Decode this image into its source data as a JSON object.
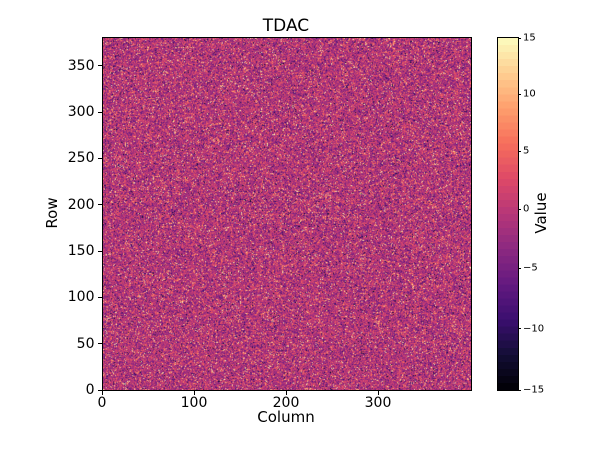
{
  "chart_data": {
    "type": "heatmap",
    "title": "TDAC",
    "xlabel": "Column",
    "ylabel": "Row",
    "x_range": [
      0,
      400
    ],
    "y_range": [
      0,
      380
    ],
    "x_ticks": [
      0,
      100,
      200,
      300
    ],
    "y_ticks": [
      0,
      50,
      100,
      150,
      200,
      250,
      300,
      350
    ],
    "colormap": "magma",
    "colorbar": {
      "label": "Value",
      "vmin": -15,
      "vmax": 15,
      "ticks": [
        15,
        10,
        5,
        0,
        -5,
        -10,
        -15
      ]
    },
    "data_description": "400x380 random noise image, values centered near 0 (approx. normal, sigma ~3) with ~9% bright outliers up to +15 and ~4% dark outliers down to -13",
    "seed": 42,
    "grid": false,
    "legend": "none"
  }
}
